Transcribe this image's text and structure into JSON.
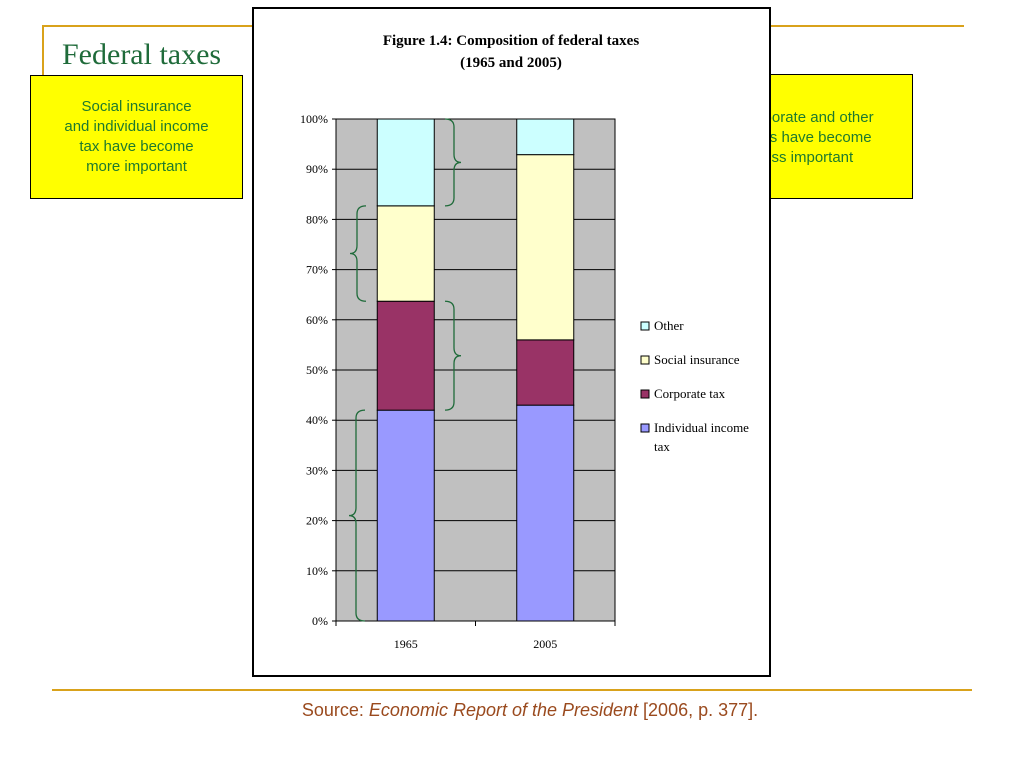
{
  "slide": {
    "title": "Federal taxes",
    "callout_left": [
      "Social insurance",
      "and individual income",
      "tax have become",
      "more important"
    ],
    "callout_right": [
      "Corporate and other",
      "taxes have become",
      "less important"
    ],
    "source_prefix": "Source: ",
    "source_title": "Economic Report of the President",
    "source_suffix": " [2006, p. 377]."
  },
  "chart_data": {
    "type": "bar",
    "stacked": true,
    "percent": true,
    "title_lines": [
      "Figure 1.4: Composition of federal taxes",
      "(1965 and 2005)"
    ],
    "categories": [
      "1965",
      "2005"
    ],
    "series": [
      {
        "name": "Individual income tax",
        "values": [
          42,
          43
        ],
        "color": "#9999ff"
      },
      {
        "name": "Corporate tax",
        "values": [
          21.7,
          13
        ],
        "color": "#993366"
      },
      {
        "name": "Social insurance",
        "values": [
          19,
          36.9
        ],
        "color": "#ffffcc"
      },
      {
        "name": "Other",
        "values": [
          17.3,
          7.1
        ],
        "color": "#ccffff"
      }
    ],
    "legend_order": [
      "Other",
      "Social insurance",
      "Corporate tax",
      "Individual income tax"
    ],
    "legend_lines": {
      "Other": [
        "Other"
      ],
      "Social insurance": [
        "Social insurance"
      ],
      "Corporate tax": [
        "Corporate tax"
      ],
      "Individual income tax": [
        "Individual income",
        "tax"
      ]
    },
    "ylim": [
      0,
      100
    ],
    "yticks": [
      0,
      10,
      20,
      30,
      40,
      50,
      60,
      70,
      80,
      90,
      100
    ],
    "ytick_labels": [
      "0%",
      "10%",
      "20%",
      "30%",
      "40%",
      "50%",
      "60%",
      "70%",
      "80%",
      "90%",
      "100%"
    ],
    "plot_background": "#c0c0c0",
    "grid": true,
    "legend_position": "right"
  }
}
